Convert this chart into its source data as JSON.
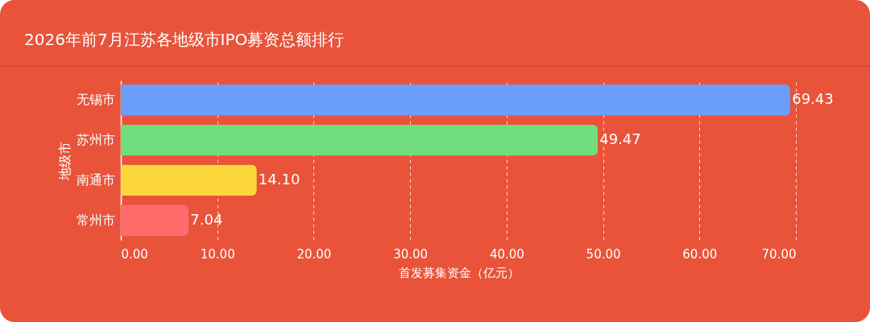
{
  "chart_data": {
    "type": "bar",
    "orientation": "horizontal",
    "title": "2026年前7月江苏各地级市IPO募资总额排行",
    "xlabel": "首发募集资金（亿元）",
    "ylabel": "地级市",
    "categories": [
      "无锡市",
      "苏州市",
      "南通市",
      "常州市"
    ],
    "values": [
      69.43,
      49.47,
      14.1,
      7.04
    ],
    "value_labels": [
      "69.43",
      "49.47",
      "14.10",
      "7.04"
    ],
    "colors": [
      "#6a9ef8",
      "#72dd7c",
      "#fcd83c",
      "#fd6b6b"
    ],
    "xlim": [
      0,
      70
    ],
    "xticks": [
      {
        "value": 0,
        "label": "0.00"
      },
      {
        "value": 10,
        "label": "10.00"
      },
      {
        "value": 20,
        "label": "20.00"
      },
      {
        "value": 30,
        "label": "30.00"
      },
      {
        "value": 40,
        "label": "40.00"
      },
      {
        "value": 50,
        "label": "50.00"
      },
      {
        "value": 60,
        "label": "60.00"
      },
      {
        "value": 70,
        "label": "70.00"
      }
    ],
    "grid": "x"
  }
}
